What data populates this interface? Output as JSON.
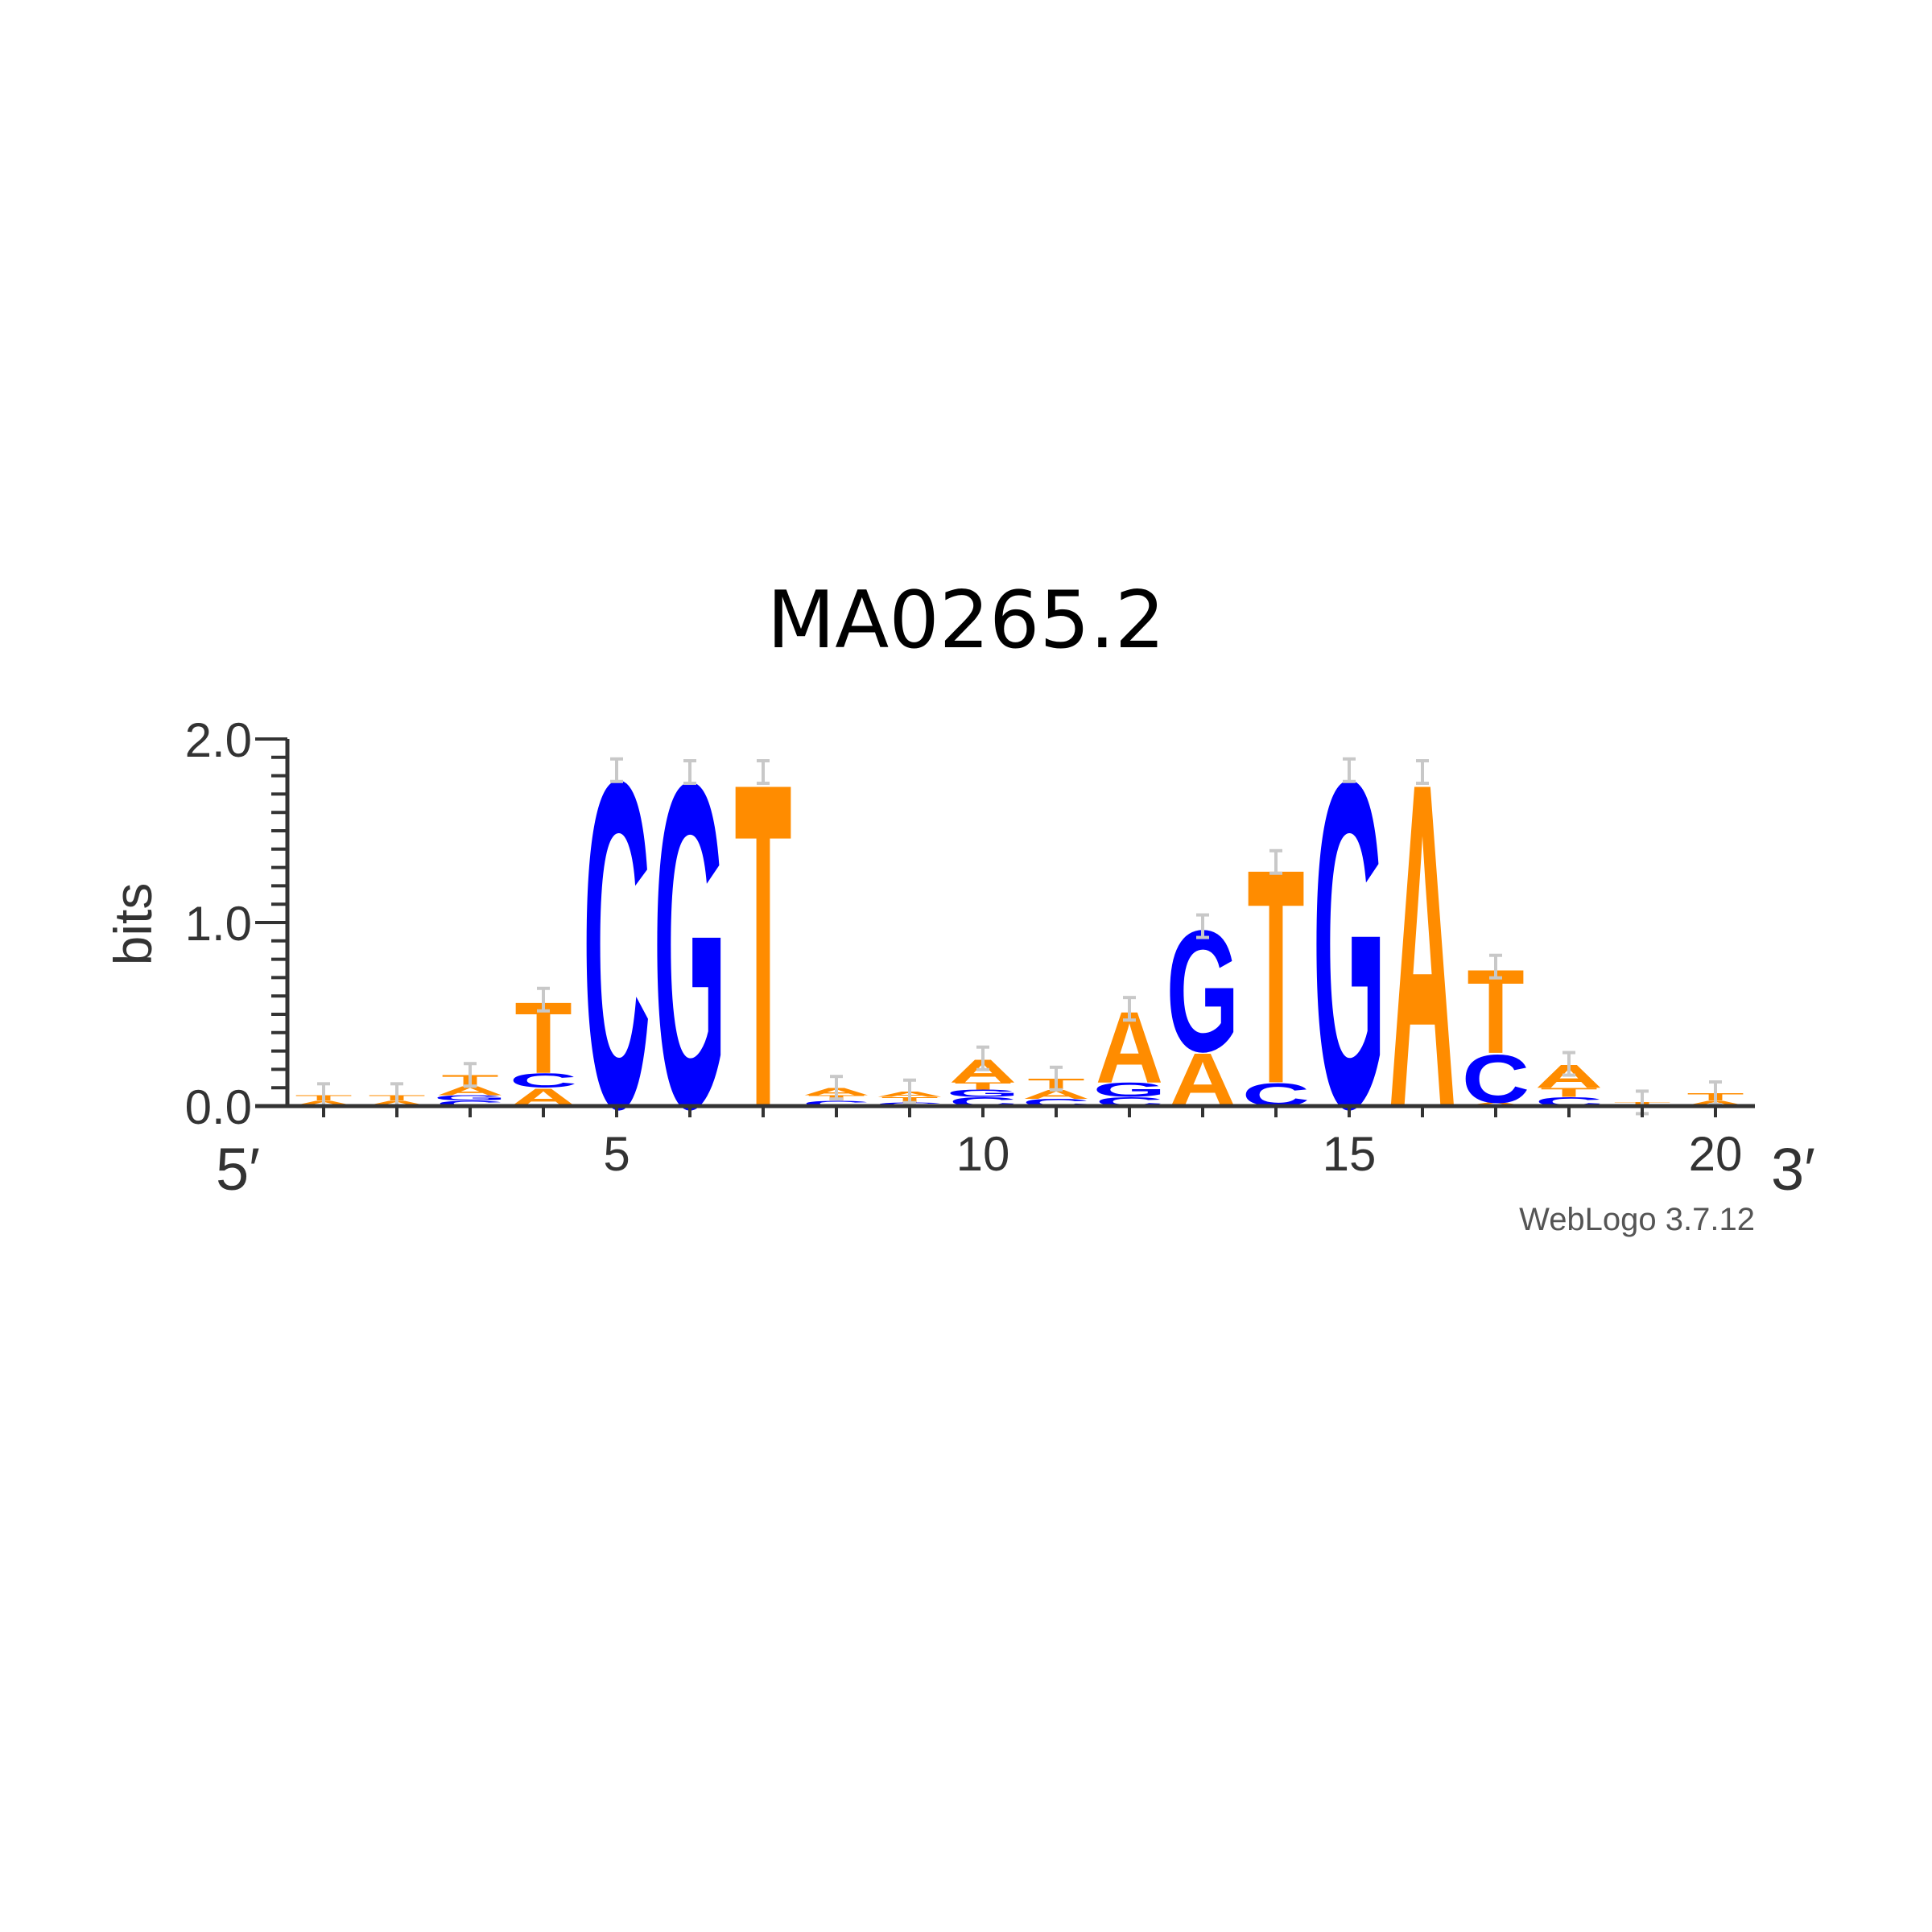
{
  "chart_data": {
    "type": "sequence-logo",
    "title": "MA0265.2",
    "ylabel": "bits",
    "ylim": [
      0,
      2
    ],
    "yticks": [
      "0.0",
      "1.0",
      "2.0"
    ],
    "xticks": [
      "5",
      "10",
      "15",
      "20"
    ],
    "x_start_label": "5′",
    "x_end_label": "3′",
    "credit": "WebLogo 3.7.12",
    "colors": {
      "A": "#ff8c00",
      "T": "#ff8c00",
      "C": "#0000ff",
      "G": "#0000ff"
    },
    "positions": [
      {
        "pos": 1,
        "stack": [
          {
            "l": "A",
            "h": 0.03
          },
          {
            "l": "T",
            "h": 0.03
          }
        ]
      },
      {
        "pos": 2,
        "stack": [
          {
            "l": "A",
            "h": 0.03
          },
          {
            "l": "T",
            "h": 0.03
          }
        ]
      },
      {
        "pos": 3,
        "stack": [
          {
            "l": "C",
            "h": 0.03
          },
          {
            "l": "G",
            "h": 0.03
          },
          {
            "l": "A",
            "h": 0.05
          },
          {
            "l": "T",
            "h": 0.06
          }
        ]
      },
      {
        "pos": 4,
        "stack": [
          {
            "l": "A",
            "h": 0.1
          },
          {
            "l": "C",
            "h": 0.08
          },
          {
            "l": "T",
            "h": 0.4
          }
        ]
      },
      {
        "pos": 5,
        "stack": [
          {
            "l": "C",
            "h": 1.83
          }
        ]
      },
      {
        "pos": 6,
        "stack": [
          {
            "l": "G",
            "h": 1.82
          }
        ]
      },
      {
        "pos": 7,
        "stack": [
          {
            "l": "T",
            "h": 1.82
          }
        ]
      },
      {
        "pos": 8,
        "stack": [
          {
            "l": "C",
            "h": 0.03
          },
          {
            "l": "T",
            "h": 0.03
          },
          {
            "l": "A",
            "h": 0.04
          }
        ]
      },
      {
        "pos": 9,
        "stack": [
          {
            "l": "C",
            "h": 0.02
          },
          {
            "l": "T",
            "h": 0.03
          },
          {
            "l": "A",
            "h": 0.03
          }
        ]
      },
      {
        "pos": 10,
        "stack": [
          {
            "l": "C",
            "h": 0.05
          },
          {
            "l": "G",
            "h": 0.04
          },
          {
            "l": "T",
            "h": 0.04
          },
          {
            "l": "A",
            "h": 0.13
          }
        ]
      },
      {
        "pos": 11,
        "stack": [
          {
            "l": "C",
            "h": 0.04
          },
          {
            "l": "A",
            "h": 0.05
          },
          {
            "l": "T",
            "h": 0.06
          }
        ]
      },
      {
        "pos": 12,
        "stack": [
          {
            "l": "C",
            "h": 0.05
          },
          {
            "l": "G",
            "h": 0.08
          },
          {
            "l": "A",
            "h": 0.4
          }
        ]
      },
      {
        "pos": 13,
        "stack": [
          {
            "l": "A",
            "h": 0.3
          },
          {
            "l": "G",
            "h": 0.68
          }
        ]
      },
      {
        "pos": 14,
        "stack": [
          {
            "l": "C",
            "h": 0.13
          },
          {
            "l": "T",
            "h": 1.2
          }
        ]
      },
      {
        "pos": 15,
        "stack": [
          {
            "l": "G",
            "h": 1.83
          }
        ]
      },
      {
        "pos": 16,
        "stack": [
          {
            "l": "A",
            "h": 1.82
          }
        ]
      },
      {
        "pos": 17,
        "stack": [
          {
            "l": "A",
            "h": 0.02
          },
          {
            "l": "C",
            "h": 0.27
          },
          {
            "l": "T",
            "h": 0.47
          }
        ]
      },
      {
        "pos": 18,
        "stack": [
          {
            "l": "C",
            "h": 0.05
          },
          {
            "l": "T",
            "h": 0.05
          },
          {
            "l": "A",
            "h": 0.13
          }
        ]
      },
      {
        "pos": 19,
        "stack": [
          {
            "l": "A",
            "h": 0.01
          },
          {
            "l": "T",
            "h": 0.01
          }
        ]
      },
      {
        "pos": 20,
        "stack": [
          {
            "l": "A",
            "h": 0.03
          },
          {
            "l": "T",
            "h": 0.04
          }
        ]
      }
    ]
  }
}
